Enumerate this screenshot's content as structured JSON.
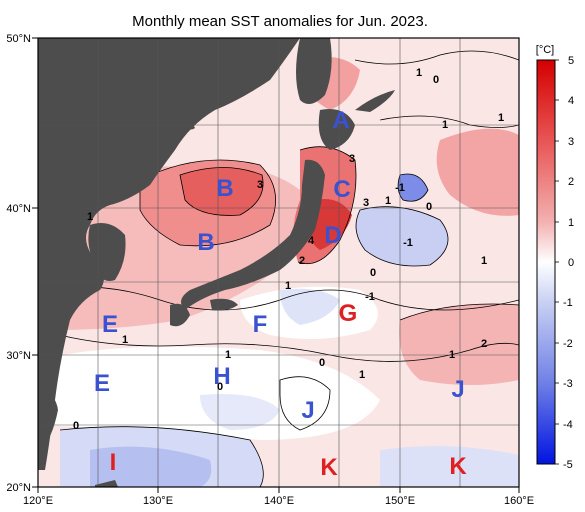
{
  "title": "Monthly mean SST anomalies for Jun. 2023.",
  "colorbar": {
    "unit": "[°C]",
    "ticks": [
      "5",
      "4",
      "3",
      "2",
      "1",
      "0",
      "-1",
      "-2",
      "-3",
      "-4",
      "-5"
    ]
  },
  "axes": {
    "lon_labels": [
      "120°E",
      "130°E",
      "140°E",
      "150°E",
      "160°E"
    ],
    "lat_labels": [
      "50°N",
      "40°N",
      "30°N",
      "20°N"
    ]
  },
  "regions": [
    {
      "label": "A",
      "color": "#3a52d0"
    },
    {
      "label": "B",
      "color": "#3a52d0"
    },
    {
      "label": "B",
      "color": "#3a52d0"
    },
    {
      "label": "C",
      "color": "#3a52d0"
    },
    {
      "label": "D",
      "color": "#3a52d0"
    },
    {
      "label": "E",
      "color": "#3a52d0"
    },
    {
      "label": "E",
      "color": "#3a52d0"
    },
    {
      "label": "F",
      "color": "#3a52d0"
    },
    {
      "label": "G",
      "color": "#e02020"
    },
    {
      "label": "H",
      "color": "#3a52d0"
    },
    {
      "label": "I",
      "color": "#e02020"
    },
    {
      "label": "J",
      "color": "#3a52d0"
    },
    {
      "label": "J",
      "color": "#3a52d0"
    },
    {
      "label": "K",
      "color": "#e02020"
    },
    {
      "label": "K",
      "color": "#e02020"
    }
  ],
  "contour_labels": [
    "1",
    "0",
    "1",
    "1",
    "3",
    "3",
    "3",
    "1",
    "-1",
    "0",
    "1",
    "4",
    "2",
    "0",
    "-1",
    "-1",
    "1",
    "1",
    "1",
    "1",
    "0",
    "1",
    "2",
    "0",
    "1",
    "0"
  ]
}
